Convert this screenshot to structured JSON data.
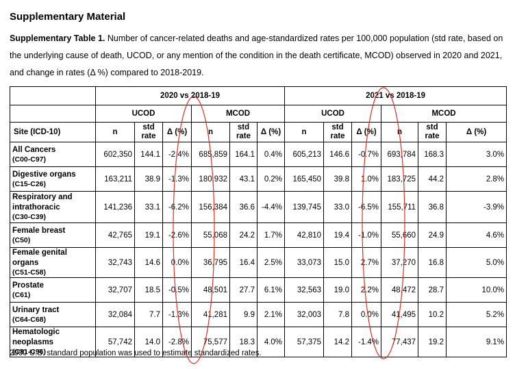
{
  "heading": "Supplementary Material",
  "caption": {
    "lead": "Supplementary Table 1.",
    "text": " Number of cancer-related deaths and age-standardized rates per 100,000 population (std rate, based on the underlying cause of death, UCOD, or any mention of the condition in the death certificate, MCOD) observed in 2020 and 2021, and change in rates (Δ %) compared to 2018-2019."
  },
  "table": {
    "group_2020": "2020 vs 2018-19",
    "group_2021": "2021 vs 2018-19",
    "ucod": "UCOD",
    "mcod": "MCOD",
    "site_header": "Site (ICD-10)",
    "col_n": "n",
    "col_std": "std rate",
    "col_delta": "Δ (%)",
    "rows": [
      {
        "name": "All Cancers",
        "code": "(C00-C97)",
        "v": [
          "602,350",
          "144.1",
          "-2.4%",
          "685,859",
          "164.1",
          "0.4%",
          "605,213",
          "146.6",
          "-0.7%",
          "693,784",
          "168.3",
          "3.0%"
        ]
      },
      {
        "name": "Digestive organs",
        "code": "(C15-C26)",
        "v": [
          "163,211",
          "38.9",
          "-1.3%",
          "180,932",
          "43.1",
          "0.2%",
          "165,450",
          "39.8",
          "1.0%",
          "183,725",
          "44.2",
          "2.8%"
        ]
      },
      {
        "name": "Respiratory and intrathoracic",
        "code": "(C30-C39)",
        "v": [
          "141,236",
          "33.1",
          "-6.2%",
          "156,384",
          "36.6",
          "-4.4%",
          "139,745",
          "33.0",
          "-6.5%",
          "155,711",
          "36.8",
          "-3.9%"
        ]
      },
      {
        "name": "Female breast",
        "code": "(C50)",
        "v": [
          "42,765",
          "19.1",
          "-2.6%",
          "55,068",
          "24.2",
          "1.7%",
          "42,810",
          "19.4",
          "-1.0%",
          "55,660",
          "24.9",
          "4.6%"
        ]
      },
      {
        "name": "Female genital organs",
        "code": "(C51-C58)",
        "v": [
          "32,743",
          "14.6",
          "0.0%",
          "36,795",
          "16.4",
          "2.5%",
          "33,073",
          "15.0",
          "2.7%",
          "37,270",
          "16.8",
          "5.0%"
        ]
      },
      {
        "name": "Prostate",
        "code": "(C61)",
        "v": [
          "32,707",
          "18.5",
          "-0.5%",
          "48,501",
          "27.7",
          "6.1%",
          "32,563",
          "19.0",
          "2.2%",
          "48,472",
          "28.7",
          "10.0%"
        ]
      },
      {
        "name": "Urinary tract",
        "code": "(C64-C68)",
        "v": [
          "32,084",
          "7.7",
          "-1.3%",
          "41,281",
          "9.9",
          "2.1%",
          "32,003",
          "7.8",
          "0.0%",
          "41,495",
          "10.2",
          "5.2%"
        ]
      },
      {
        "name": "Hematologic neoplasms",
        "code": "(C81-C96)",
        "v": [
          "57,742",
          "14.0",
          "-2.8%",
          "75,577",
          "18.3",
          "4.0%",
          "57,375",
          "14.2",
          "-1.4%",
          "77,437",
          "19.2",
          "9.1%"
        ]
      }
    ]
  },
  "footnote": "2000 U.S. standard population was used to estimate standardized rates.",
  "annotation_color": "#d93025"
}
